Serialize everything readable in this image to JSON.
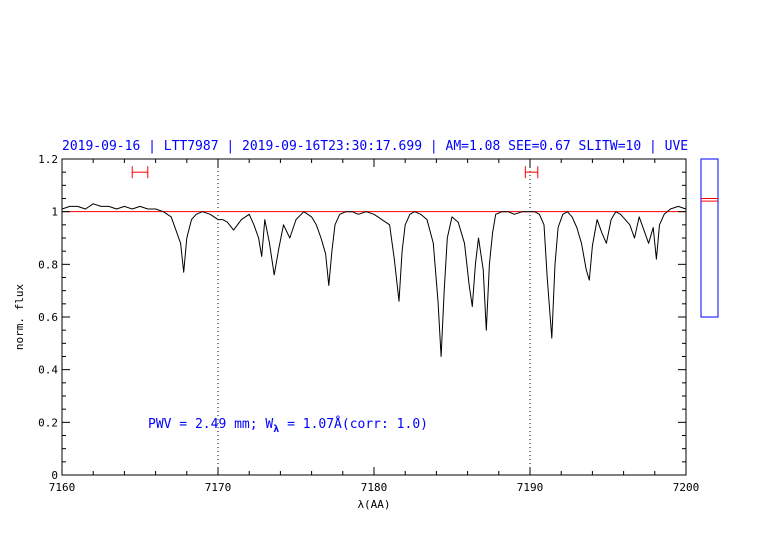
{
  "chart_data": {
    "type": "line",
    "title": "2019-09-16 | LTT7987 | 2019-09-16T23:30:17.699 | AM=1.08 SEE=0.67 SLITW=10 | UVE",
    "xlabel": "λ(AA)",
    "ylabel": "norm. flux",
    "xlim": [
      7160,
      7200
    ],
    "ylim": [
      0,
      1.2
    ],
    "xticks": [
      "7160",
      "7170",
      "7180",
      "7190",
      "7200"
    ],
    "yticks": [
      "0",
      "0.2",
      "0.4",
      "0.6",
      "0.8",
      "1",
      "1.2"
    ],
    "annotation": {
      "prefix": "PWV = 2.49 mm; W",
      "subscript": "λ",
      "suffix": " = 1.07Å(corr: 1.0)"
    },
    "continuum_level": 1.0,
    "reference_lines_x": [
      7170,
      7190
    ],
    "fit_windows": [
      {
        "x1": 7164.5,
        "x2": 7165.5,
        "y": 1.15
      },
      {
        "x1": 7189.7,
        "x2": 7190.5,
        "y": 1.15
      }
    ],
    "side_panel": {
      "ylim_shown": [
        0.6,
        1.2
      ],
      "marker_levels": [
        1.04,
        1.05
      ]
    },
    "series": [
      {
        "color": "#000000",
        "x": [
          7160,
          7160.5,
          7161,
          7161.5,
          7162,
          7162.5,
          7163,
          7163.5,
          7164,
          7164.5,
          7165,
          7165.5,
          7166,
          7166.5,
          7167,
          7167.3,
          7167.6,
          7167.8,
          7168,
          7168.3,
          7168.6,
          7169,
          7169.5,
          7170,
          7170.3,
          7170.6,
          7171,
          7171.5,
          7172,
          7172.3,
          7172.6,
          7172.8,
          7173,
          7173.3,
          7173.6,
          7173.9,
          7174.2,
          7174.6,
          7175,
          7175.5,
          7176,
          7176.3,
          7176.6,
          7176.9,
          7177.1,
          7177.3,
          7177.5,
          7177.8,
          7178.2,
          7178.6,
          7179,
          7179.5,
          7180,
          7180.5,
          7181,
          7181.3,
          7181.6,
          7181.8,
          7182,
          7182.3,
          7182.6,
          7183,
          7183.4,
          7183.8,
          7184.1,
          7184.3,
          7184.5,
          7184.7,
          7185,
          7185.4,
          7185.8,
          7186.1,
          7186.3,
          7186.5,
          7186.7,
          7187,
          7187.2,
          7187.4,
          7187.6,
          7187.8,
          7188.2,
          7188.6,
          7189,
          7189.5,
          7190,
          7190.3,
          7190.6,
          7190.9,
          7191.1,
          7191.4,
          7191.6,
          7191.8,
          7192.1,
          7192.4,
          7192.7,
          7193,
          7193.3,
          7193.6,
          7193.8,
          7194,
          7194.3,
          7194.6,
          7194.9,
          7195.2,
          7195.5,
          7195.8,
          7196.1,
          7196.4,
          7196.7,
          7197,
          7197.3,
          7197.6,
          7197.9,
          7198.1,
          7198.3,
          7198.6,
          7199,
          7199.5,
          7200
        ],
        "values": [
          1.01,
          1.02,
          1.02,
          1.01,
          1.03,
          1.02,
          1.02,
          1.01,
          1.02,
          1.01,
          1.02,
          1.01,
          1.01,
          1.0,
          0.98,
          0.93,
          0.88,
          0.77,
          0.9,
          0.97,
          0.99,
          1.0,
          0.99,
          0.97,
          0.97,
          0.96,
          0.93,
          0.97,
          0.99,
          0.95,
          0.9,
          0.83,
          0.97,
          0.88,
          0.76,
          0.86,
          0.95,
          0.9,
          0.97,
          1.0,
          0.98,
          0.95,
          0.9,
          0.84,
          0.72,
          0.85,
          0.95,
          0.99,
          1.0,
          1.0,
          0.99,
          1.0,
          0.99,
          0.97,
          0.95,
          0.82,
          0.66,
          0.85,
          0.95,
          0.99,
          1.0,
          0.99,
          0.97,
          0.88,
          0.66,
          0.45,
          0.7,
          0.9,
          0.98,
          0.96,
          0.88,
          0.72,
          0.64,
          0.8,
          0.9,
          0.78,
          0.55,
          0.8,
          0.92,
          0.99,
          1.0,
          1.0,
          0.99,
          1.0,
          1.0,
          1.0,
          0.99,
          0.95,
          0.75,
          0.52,
          0.8,
          0.94,
          0.99,
          1.0,
          0.98,
          0.94,
          0.88,
          0.78,
          0.74,
          0.87,
          0.97,
          0.92,
          0.88,
          0.97,
          1.0,
          0.99,
          0.97,
          0.95,
          0.9,
          0.98,
          0.93,
          0.88,
          0.94,
          0.82,
          0.95,
          0.99,
          1.01,
          1.02,
          1.01
        ]
      }
    ]
  }
}
